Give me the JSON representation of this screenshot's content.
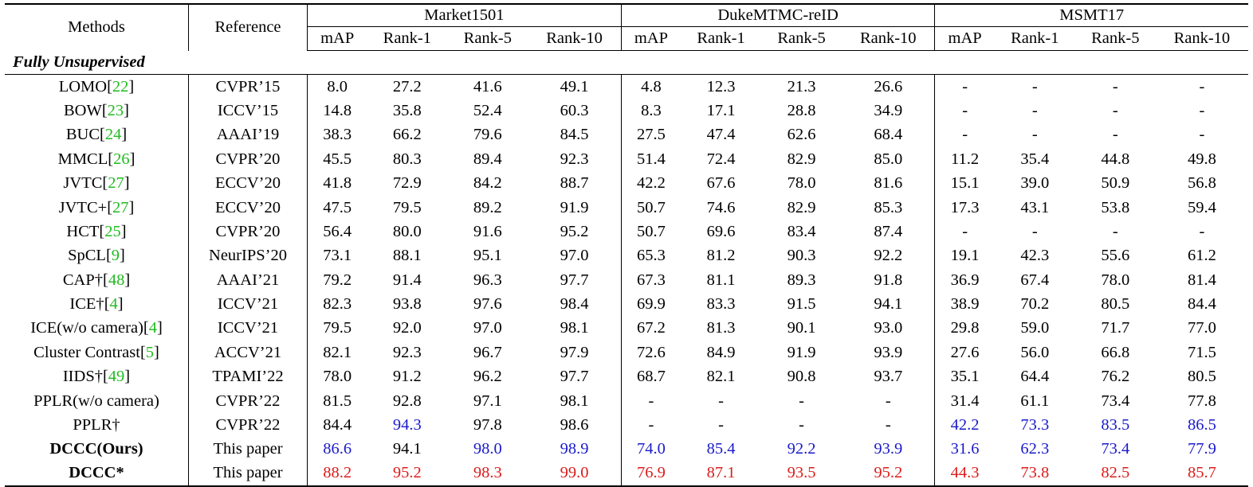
{
  "headers": {
    "methods": "Methods",
    "reference": "Reference",
    "datasets": [
      "Market1501",
      "DukeMTMC-reID",
      "MSMT17"
    ],
    "metrics": [
      "mAP",
      "Rank-1",
      "Rank-5",
      "Rank-10"
    ]
  },
  "section_title": "Fully Unsupervised",
  "colors": {
    "blue": "#1a1acc",
    "red": "#dd1c1c",
    "citation": "#22bb22"
  },
  "rows": [
    {
      "name": "LOMO",
      "cite": "22",
      "ref": "CVPR’15",
      "values": [
        "8.0",
        "27.2",
        "41.6",
        "49.1",
        "4.8",
        "12.3",
        "21.3",
        "26.6",
        "-",
        "-",
        "-",
        "-"
      ]
    },
    {
      "name": "BOW",
      "cite": "23",
      "ref": "ICCV’15",
      "values": [
        "14.8",
        "35.8",
        "52.4",
        "60.3",
        "8.3",
        "17.1",
        "28.8",
        "34.9",
        "-",
        "-",
        "-",
        "-"
      ]
    },
    {
      "name": "BUC",
      "cite": "24",
      "ref": "AAAI’19",
      "values": [
        "38.3",
        "66.2",
        "79.6",
        "84.5",
        "27.5",
        "47.4",
        "62.6",
        "68.4",
        "-",
        "-",
        "-",
        "-"
      ]
    },
    {
      "name": "MMCL",
      "cite": "26",
      "ref": "CVPR’20",
      "values": [
        "45.5",
        "80.3",
        "89.4",
        "92.3",
        "51.4",
        "72.4",
        "82.9",
        "85.0",
        "11.2",
        "35.4",
        "44.8",
        "49.8"
      ]
    },
    {
      "name": "JVTC",
      "cite": "27",
      "ref": "ECCV’20",
      "values": [
        "41.8",
        "72.9",
        "84.2",
        "88.7",
        "42.2",
        "67.6",
        "78.0",
        "81.6",
        "15.1",
        "39.0",
        "50.9",
        "56.8"
      ]
    },
    {
      "name": "JVTC+",
      "cite": "27",
      "ref": "ECCV’20",
      "values": [
        "47.5",
        "79.5",
        "89.2",
        "91.9",
        "50.7",
        "74.6",
        "82.9",
        "85.3",
        "17.3",
        "43.1",
        "53.8",
        "59.4"
      ]
    },
    {
      "name": "HCT",
      "cite": "25",
      "ref": "CVPR’20",
      "values": [
        "56.4",
        "80.0",
        "91.6",
        "95.2",
        "50.7",
        "69.6",
        "83.4",
        "87.4",
        "-",
        "-",
        "-",
        "-"
      ]
    },
    {
      "name": "SpCL",
      "cite": "9",
      "ref": "NeurIPS’20",
      "values": [
        "73.1",
        "88.1",
        "95.1",
        "97.0",
        "65.3",
        "81.2",
        "90.3",
        "92.2",
        "19.1",
        "42.3",
        "55.6",
        "61.2"
      ]
    },
    {
      "name": "CAP†",
      "cite": "48",
      "ref": "AAAI’21",
      "values": [
        "79.2",
        "91.4",
        "96.3",
        "97.7",
        "67.3",
        "81.1",
        "89.3",
        "91.8",
        "36.9",
        "67.4",
        "78.0",
        "81.4"
      ]
    },
    {
      "name": "ICE†",
      "cite": "4",
      "ref": "ICCV’21",
      "values": [
        "82.3",
        "93.8",
        "97.6",
        "98.4",
        "69.9",
        "83.3",
        "91.5",
        "94.1",
        "38.9",
        "70.2",
        "80.5",
        "84.4"
      ]
    },
    {
      "name": "ICE(w/o camera)",
      "cite": "4",
      "ref": "ICCV’21",
      "values": [
        "79.5",
        "92.0",
        "97.0",
        "98.1",
        "67.2",
        "81.3",
        "90.1",
        "93.0",
        "29.8",
        "59.0",
        "71.7",
        "77.0"
      ]
    },
    {
      "name": "Cluster Contrast",
      "cite": "5",
      "ref": "ACCV’21",
      "values": [
        "82.1",
        "92.3",
        "96.7",
        "97.9",
        "72.6",
        "84.9",
        "91.9",
        "93.9",
        "27.6",
        "56.0",
        "66.8",
        "71.5"
      ]
    },
    {
      "name": "IIDS†",
      "cite": "49",
      "ref": "TPAMI’22",
      "values": [
        "78.0",
        "91.2",
        "96.2",
        "97.7",
        "68.7",
        "82.1",
        "90.8",
        "93.7",
        "35.1",
        "64.4",
        "76.2",
        "80.5"
      ]
    },
    {
      "name": "PPLR(w/o camera)",
      "cite": "",
      "ref": "CVPR’22",
      "values": [
        "81.5",
        "92.8",
        "97.1",
        "98.1",
        "-",
        "-",
        "-",
        "-",
        "31.4",
        "61.1",
        "73.4",
        "77.8"
      ]
    },
    {
      "name": "PPLR†",
      "cite": "",
      "ref": "CVPR’22",
      "values": [
        "84.4",
        "94.3",
        "97.8",
        "98.6",
        "-",
        "-",
        "-",
        "-",
        "42.2",
        "73.3",
        "83.5",
        "86.5"
      ],
      "colors": [
        "",
        "blue",
        "",
        "",
        "",
        "",
        "",
        "",
        "blue",
        "blue",
        "blue",
        "blue"
      ]
    },
    {
      "name": "DCCC(Ours)",
      "cite": "",
      "bold": true,
      "ref": "This paper",
      "values": [
        "86.6",
        "94.1",
        "98.0",
        "98.9",
        "74.0",
        "85.4",
        "92.2",
        "93.9",
        "31.6",
        "62.3",
        "73.4",
        "77.9"
      ],
      "colors": [
        "blue",
        "",
        "blue",
        "blue",
        "blue",
        "blue",
        "blue",
        "blue",
        "blue",
        "blue",
        "blue",
        "blue"
      ]
    },
    {
      "name": "DCCC*",
      "cite": "",
      "bold": true,
      "ref": "This paper",
      "values": [
        "88.2",
        "95.2",
        "98.3",
        "99.0",
        "76.9",
        "87.1",
        "93.5",
        "95.2",
        "44.3",
        "73.8",
        "82.5",
        "85.7"
      ],
      "colors": [
        "red",
        "red",
        "red",
        "red",
        "red",
        "red",
        "red",
        "red",
        "red",
        "red",
        "red",
        "red"
      ]
    }
  ]
}
